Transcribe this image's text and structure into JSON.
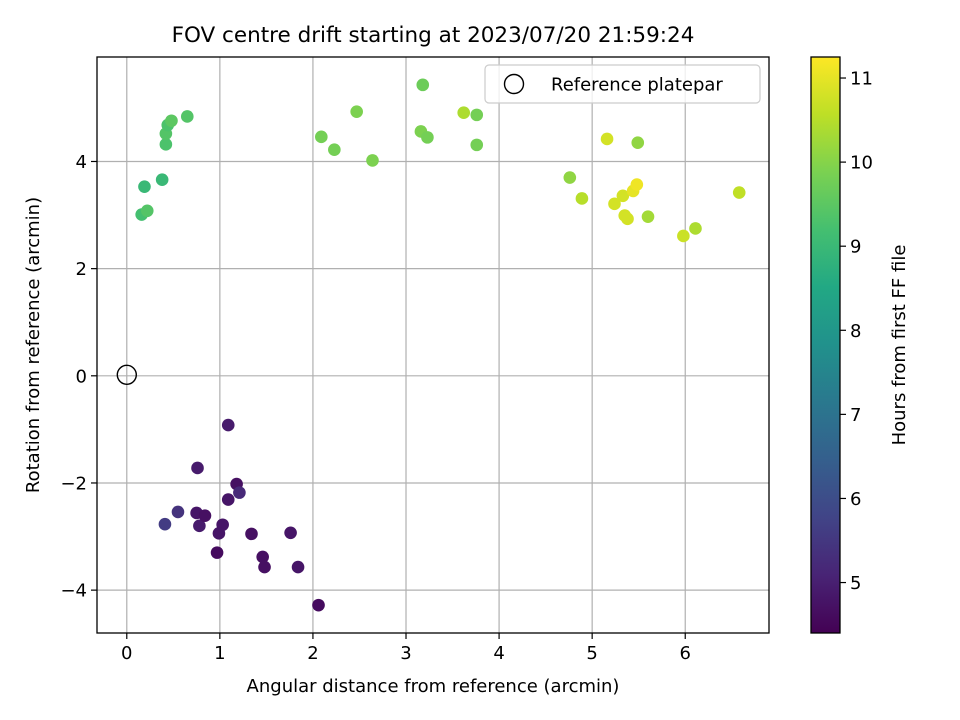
{
  "chart_data": {
    "type": "scatter",
    "title": "FOV centre drift starting at 2023/07/20 21:59:24",
    "xlabel": "Angular distance from reference (arcmin)",
    "ylabel": "Rotation from reference (arcmin)",
    "xlim": [
      -0.32,
      6.9
    ],
    "ylim": [
      -4.8,
      5.95
    ],
    "xticks": [
      0,
      1,
      2,
      3,
      4,
      5,
      6
    ],
    "yticks": [
      -4,
      -2,
      0,
      2,
      4
    ],
    "xtick_labels": [
      "0",
      "1",
      "2",
      "3",
      "4",
      "5",
      "6"
    ],
    "ytick_labels": [
      "−4",
      "−2",
      "0",
      "2",
      "4"
    ],
    "grid": true,
    "colormap": "viridis",
    "colorbar": {
      "label": "Hours from first FF file",
      "range": [
        4.4,
        11.25
      ],
      "ticks": [
        5,
        6,
        7,
        8,
        9,
        10,
        11
      ],
      "tick_labels": [
        "5",
        "6",
        "7",
        "8",
        "9",
        "10",
        "11"
      ]
    },
    "reference": {
      "label": "Reference platepar",
      "x": 0,
      "y": 0
    },
    "legend_position": "top-right",
    "points": [
      {
        "x": 1.09,
        "y": -0.92,
        "c": 4.9
      },
      {
        "x": 0.76,
        "y": -1.72,
        "c": 4.9
      },
      {
        "x": 1.18,
        "y": -2.02,
        "c": 4.7
      },
      {
        "x": 1.21,
        "y": -2.18,
        "c": 5.2
      },
      {
        "x": 1.09,
        "y": -2.31,
        "c": 4.8
      },
      {
        "x": 0.41,
        "y": -2.77,
        "c": 5.6
      },
      {
        "x": 0.55,
        "y": -2.54,
        "c": 5.4
      },
      {
        "x": 0.75,
        "y": -2.56,
        "c": 4.8
      },
      {
        "x": 0.78,
        "y": -2.8,
        "c": 4.9
      },
      {
        "x": 0.84,
        "y": -2.61,
        "c": 4.7
      },
      {
        "x": 1.03,
        "y": -2.78,
        "c": 4.8
      },
      {
        "x": 0.99,
        "y": -2.94,
        "c": 4.8
      },
      {
        "x": 0.97,
        "y": -3.3,
        "c": 4.6
      },
      {
        "x": 1.34,
        "y": -2.95,
        "c": 4.7
      },
      {
        "x": 1.76,
        "y": -2.93,
        "c": 4.8
      },
      {
        "x": 1.46,
        "y": -3.38,
        "c": 4.7
      },
      {
        "x": 1.48,
        "y": -3.57,
        "c": 4.7
      },
      {
        "x": 1.84,
        "y": -3.57,
        "c": 4.8
      },
      {
        "x": 2.06,
        "y": -4.28,
        "c": 4.6
      },
      {
        "x": 0.16,
        "y": 3.01,
        "c": 9.2
      },
      {
        "x": 0.22,
        "y": 3.08,
        "c": 9.4
      },
      {
        "x": 0.19,
        "y": 3.53,
        "c": 9.0
      },
      {
        "x": 0.38,
        "y": 3.66,
        "c": 9.0
      },
      {
        "x": 0.42,
        "y": 4.32,
        "c": 9.3
      },
      {
        "x": 0.42,
        "y": 4.52,
        "c": 9.4
      },
      {
        "x": 0.44,
        "y": 4.68,
        "c": 9.3
      },
      {
        "x": 0.48,
        "y": 4.76,
        "c": 9.5
      },
      {
        "x": 0.65,
        "y": 4.84,
        "c": 9.4
      },
      {
        "x": 2.09,
        "y": 4.46,
        "c": 9.8
      },
      {
        "x": 2.23,
        "y": 4.22,
        "c": 9.8
      },
      {
        "x": 2.47,
        "y": 4.93,
        "c": 9.9
      },
      {
        "x": 2.64,
        "y": 4.02,
        "c": 9.9
      },
      {
        "x": 3.18,
        "y": 5.43,
        "c": 9.7
      },
      {
        "x": 3.16,
        "y": 4.56,
        "c": 9.9
      },
      {
        "x": 3.23,
        "y": 4.45,
        "c": 9.8
      },
      {
        "x": 3.62,
        "y": 4.91,
        "c": 10.4
      },
      {
        "x": 3.76,
        "y": 4.87,
        "c": 9.8
      },
      {
        "x": 3.76,
        "y": 4.31,
        "c": 9.8
      },
      {
        "x": 4.76,
        "y": 3.7,
        "c": 10.1
      },
      {
        "x": 4.89,
        "y": 3.31,
        "c": 10.5
      },
      {
        "x": 5.16,
        "y": 4.42,
        "c": 10.8
      },
      {
        "x": 5.24,
        "y": 3.21,
        "c": 10.8
      },
      {
        "x": 5.33,
        "y": 3.36,
        "c": 10.8
      },
      {
        "x": 5.35,
        "y": 2.99,
        "c": 10.8
      },
      {
        "x": 5.38,
        "y": 2.93,
        "c": 10.8
      },
      {
        "x": 5.44,
        "y": 3.45,
        "c": 11.0
      },
      {
        "x": 5.48,
        "y": 3.57,
        "c": 11.1
      },
      {
        "x": 5.49,
        "y": 4.35,
        "c": 10.1
      },
      {
        "x": 5.6,
        "y": 2.97,
        "c": 10.3
      },
      {
        "x": 5.98,
        "y": 2.61,
        "c": 10.7
      },
      {
        "x": 6.11,
        "y": 2.75,
        "c": 10.4
      },
      {
        "x": 6.58,
        "y": 3.42,
        "c": 10.6
      }
    ]
  }
}
